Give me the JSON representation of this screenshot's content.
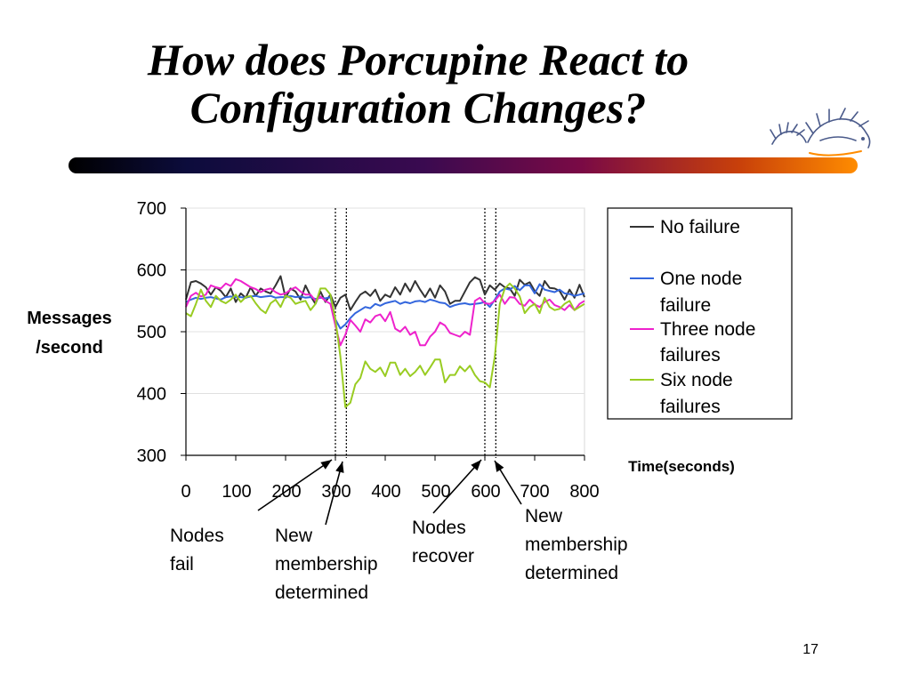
{
  "slide": {
    "title_line1": "How does Porcupine React to",
    "title_line2": "Configuration Changes?",
    "page_number": "17"
  },
  "annotations": {
    "nodes_fail": "Nodes\nfail",
    "new_membership_1": "New\nmembership\ndetermined",
    "nodes_recover": "Nodes\nrecover",
    "new_membership_2": "New\nmembership\ndetermined"
  },
  "logo": {
    "icon": "porcupine-logo-icon"
  },
  "chart_data": {
    "type": "line",
    "title": "",
    "xlabel": "Time(seconds)",
    "ylabel_line1": "Messages",
    "ylabel_line2": "/second",
    "xlim": [
      0,
      800
    ],
    "ylim": [
      300,
      700
    ],
    "xticks": [
      0,
      100,
      200,
      300,
      400,
      500,
      600,
      700,
      800
    ],
    "yticks": [
      300,
      400,
      500,
      600,
      700
    ],
    "grid": "horizontal",
    "legend_position": "right",
    "event_lines_x": [
      300,
      322,
      600,
      622
    ],
    "series": [
      {
        "name": "No failure",
        "color": "#333333",
        "x": [
          0,
          10,
          20,
          30,
          40,
          50,
          60,
          70,
          80,
          90,
          100,
          110,
          120,
          130,
          140,
          150,
          160,
          170,
          180,
          190,
          200,
          210,
          220,
          230,
          240,
          250,
          260,
          270,
          280,
          290,
          300,
          310,
          320,
          330,
          340,
          350,
          360,
          370,
          380,
          390,
          400,
          410,
          420,
          430,
          440,
          450,
          460,
          470,
          480,
          490,
          500,
          510,
          520,
          530,
          540,
          550,
          560,
          570,
          580,
          590,
          600,
          610,
          620,
          630,
          640,
          650,
          660,
          670,
          680,
          690,
          700,
          710,
          720,
          730,
          740,
          750,
          760,
          770,
          780,
          790,
          800
        ],
        "values": [
          552,
          580,
          582,
          578,
          572,
          560,
          572,
          566,
          556,
          570,
          548,
          562,
          555,
          572,
          558,
          570,
          565,
          562,
          575,
          590,
          555,
          570,
          565,
          552,
          575,
          558,
          545,
          565,
          548,
          560,
          540,
          555,
          560,
          535,
          548,
          560,
          565,
          558,
          568,
          550,
          560,
          556,
          572,
          560,
          578,
          565,
          582,
          568,
          556,
          570,
          555,
          575,
          565,
          545,
          550,
          550,
          565,
          580,
          588,
          584,
          560,
          575,
          568,
          578,
          572,
          570,
          558,
          584,
          576,
          580,
          566,
          558,
          582,
          571,
          570,
          566,
          552,
          568,
          555,
          576,
          556
        ]
      },
      {
        "name": "One node failure",
        "color": "#3366dd",
        "x": [
          0,
          10,
          20,
          30,
          40,
          50,
          60,
          70,
          80,
          90,
          100,
          110,
          120,
          130,
          140,
          150,
          160,
          170,
          180,
          190,
          200,
          210,
          220,
          230,
          240,
          250,
          260,
          270,
          280,
          290,
          300,
          310,
          320,
          330,
          340,
          350,
          360,
          370,
          380,
          390,
          400,
          410,
          420,
          430,
          440,
          450,
          460,
          470,
          480,
          490,
          500,
          510,
          520,
          530,
          540,
          550,
          560,
          570,
          580,
          590,
          600,
          610,
          620,
          630,
          640,
          650,
          660,
          670,
          680,
          690,
          700,
          710,
          720,
          730,
          740,
          750,
          760,
          770,
          780,
          790,
          800
        ],
        "values": [
          548,
          552,
          555,
          553,
          555,
          556,
          554,
          552,
          556,
          557,
          556,
          556,
          555,
          557,
          558,
          556,
          557,
          558,
          555,
          556,
          556,
          558,
          556,
          557,
          555,
          556,
          553,
          555,
          554,
          556,
          520,
          505,
          512,
          522,
          530,
          535,
          540,
          538,
          545,
          542,
          546,
          548,
          550,
          545,
          548,
          546,
          549,
          550,
          548,
          552,
          550,
          547,
          546,
          540,
          543,
          545,
          546,
          544,
          545,
          546,
          548,
          540,
          552,
          565,
          570,
          568,
          574,
          567,
          575,
          575,
          562,
          577,
          568,
          566,
          564,
          568,
          562,
          561,
          558,
          560,
          562
        ]
      },
      {
        "name": "Three node failures",
        "color": "#ee22cc",
        "x": [
          0,
          10,
          20,
          30,
          40,
          50,
          60,
          70,
          80,
          90,
          100,
          110,
          120,
          130,
          140,
          150,
          160,
          170,
          180,
          190,
          200,
          210,
          220,
          230,
          240,
          250,
          260,
          270,
          280,
          290,
          300,
          310,
          320,
          330,
          340,
          350,
          360,
          370,
          380,
          390,
          400,
          410,
          420,
          430,
          440,
          450,
          460,
          470,
          480,
          490,
          500,
          510,
          520,
          530,
          540,
          550,
          560,
          570,
          580,
          590,
          600,
          610,
          620,
          630,
          640,
          650,
          660,
          670,
          680,
          690,
          700,
          710,
          720,
          730,
          740,
          750,
          760,
          770,
          780,
          790,
          800
        ],
        "values": [
          540,
          558,
          563,
          557,
          560,
          575,
          572,
          570,
          578,
          574,
          585,
          582,
          577,
          572,
          569,
          564,
          568,
          570,
          564,
          560,
          562,
          568,
          572,
          565,
          560,
          560,
          550,
          557,
          550,
          545,
          510,
          478,
          495,
          519,
          510,
          500,
          520,
          515,
          525,
          528,
          517,
          532,
          505,
          500,
          508,
          495,
          500,
          478,
          478,
          492,
          500,
          515,
          510,
          498,
          495,
          492,
          500,
          495,
          550,
          555,
          546,
          545,
          550,
          560,
          545,
          556,
          555,
          545,
          542,
          552,
          544,
          540,
          548,
          552,
          543,
          540,
          535,
          543,
          535,
          545,
          550
        ]
      },
      {
        "name": "Six node failures",
        "color": "#99cc22",
        "x": [
          0,
          10,
          20,
          30,
          40,
          50,
          60,
          70,
          80,
          90,
          100,
          110,
          120,
          130,
          140,
          150,
          160,
          170,
          180,
          190,
          200,
          210,
          220,
          230,
          240,
          250,
          260,
          270,
          280,
          290,
          300,
          310,
          320,
          330,
          340,
          350,
          360,
          370,
          380,
          390,
          400,
          410,
          420,
          430,
          440,
          450,
          460,
          470,
          480,
          490,
          500,
          510,
          520,
          530,
          540,
          550,
          560,
          570,
          580,
          590,
          600,
          610,
          620,
          630,
          640,
          650,
          660,
          670,
          680,
          690,
          700,
          710,
          720,
          730,
          740,
          750,
          760,
          770,
          780,
          790,
          800
        ],
        "values": [
          530,
          525,
          545,
          568,
          550,
          540,
          558,
          550,
          546,
          552,
          560,
          548,
          556,
          558,
          546,
          536,
          530,
          546,
          552,
          540,
          558,
          555,
          545,
          548,
          550,
          535,
          545,
          570,
          570,
          560,
          520,
          460,
          378,
          385,
          415,
          425,
          452,
          440,
          435,
          442,
          428,
          450,
          450,
          430,
          440,
          428,
          435,
          445,
          430,
          442,
          455,
          455,
          418,
          430,
          430,
          444,
          436,
          445,
          430,
          420,
          418,
          410,
          460,
          545,
          570,
          578,
          570,
          557,
          530,
          540,
          545,
          530,
          555,
          540,
          535,
          537,
          545,
          550,
          535,
          540,
          545
        ]
      }
    ]
  }
}
